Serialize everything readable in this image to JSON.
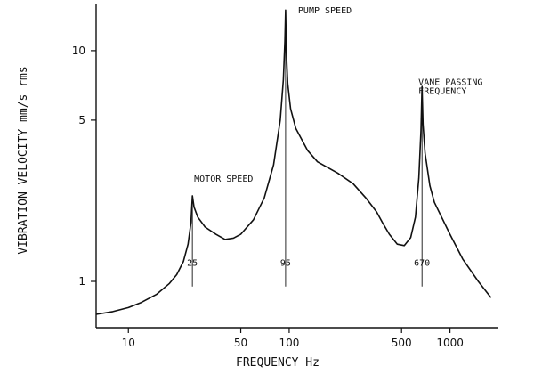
{
  "chart_data": {
    "type": "line",
    "xlabel": "FREQUENCY   Hz",
    "ylabel": "VIBRATION  VELOCITY  mm/s     rms",
    "x_scale": "log",
    "y_scale": "log",
    "xlim": [
      6.3,
      2000
    ],
    "ylim": [
      0.63,
      16
    ],
    "grid": false,
    "x_ticks": [
      {
        "value": 10,
        "label": "10"
      },
      {
        "value": 50,
        "label": "50"
      },
      {
        "value": 100,
        "label": "100"
      },
      {
        "value": 500,
        "label": "500"
      },
      {
        "value": 1000,
        "label": "1000"
      }
    ],
    "y_ticks": [
      {
        "value": 1,
        "label": "1"
      },
      {
        "value": 5,
        "label": "5"
      },
      {
        "value": 10,
        "label": "10"
      }
    ],
    "annotations": [
      {
        "text": "MOTOR SPEED",
        "x": 25,
        "y": 2.7
      },
      {
        "text": "PUMP SPEED",
        "x": 95,
        "y": 14.5
      },
      {
        "text": "VANE PASSING",
        "x": 670,
        "y": 7.1
      },
      {
        "text": "FREQUENCY",
        "x": 670,
        "y": 6.5
      }
    ],
    "marker_lines": [
      {
        "x": 25,
        "label": "25"
      },
      {
        "x": 95,
        "label": "95"
      },
      {
        "x": 670,
        "label": "670"
      }
    ],
    "series": [
      {
        "x": [
          6.3,
          8,
          10,
          12,
          15,
          18,
          20,
          22,
          23.5,
          24.5,
          25,
          25.6,
          27,
          30,
          35,
          40,
          45,
          50,
          60,
          70,
          80,
          88,
          92,
          94,
          95,
          96,
          98,
          102,
          110,
          130,
          150,
          200,
          250,
          300,
          350,
          380,
          420,
          470,
          520,
          570,
          610,
          640,
          660,
          670,
          680,
          700,
          750,
          800,
          1000,
          1200,
          1500,
          1800
        ],
        "y": [
          0.72,
          0.74,
          0.77,
          0.81,
          0.88,
          0.98,
          1.07,
          1.22,
          1.45,
          1.8,
          2.35,
          2.1,
          1.9,
          1.72,
          1.6,
          1.52,
          1.54,
          1.6,
          1.85,
          2.3,
          3.2,
          5.0,
          7.5,
          11.0,
          15.0,
          10.0,
          7.2,
          5.6,
          4.6,
          3.7,
          3.3,
          2.95,
          2.65,
          2.3,
          2.0,
          1.8,
          1.6,
          1.45,
          1.43,
          1.55,
          1.9,
          2.8,
          4.5,
          7.0,
          4.8,
          3.6,
          2.6,
          2.2,
          1.6,
          1.25,
          1.0,
          0.85
        ]
      }
    ]
  }
}
